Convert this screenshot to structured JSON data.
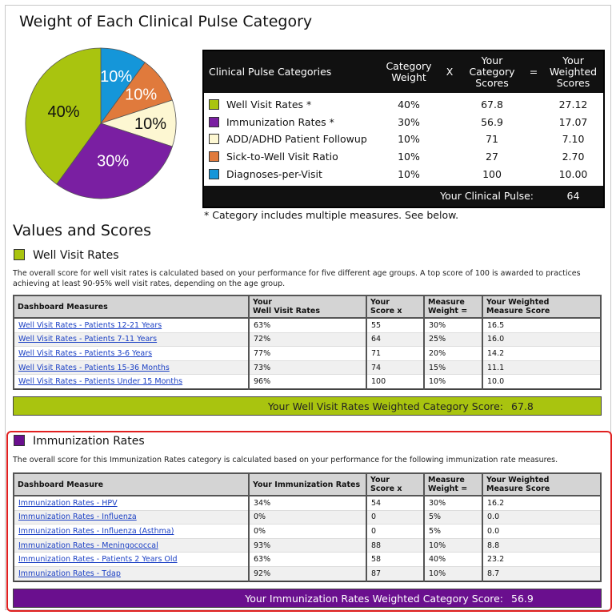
{
  "title": "Weight of Each Clinical Pulse Category",
  "pie": [
    {
      "label": "40%",
      "value": 40,
      "color": "#a9c40f"
    },
    {
      "label": "30%",
      "value": 30,
      "color": "#7a1fa2"
    },
    {
      "label": "10%",
      "value": 10,
      "color": "#fdf7d2"
    },
    {
      "label": "10%",
      "value": 10,
      "color": "#e07a3c"
    },
    {
      "label": "10%",
      "value": 10,
      "color": "#1596d9"
    }
  ],
  "summary": {
    "headers": {
      "categories": "Clinical Pulse Categories",
      "weight": "Category Weight",
      "x": "X",
      "scores": "Your Category Scores",
      "eq": "=",
      "weighted": "Your Weighted Scores"
    },
    "rows": [
      {
        "name": "Well Visit Rates *",
        "weight": "40%",
        "score": "67.8",
        "weighted": "27.12",
        "color": "#a9c40f"
      },
      {
        "name": "Immunization Rates *",
        "weight": "30%",
        "score": "56.9",
        "weighted": "17.07",
        "color": "#7a1fa2"
      },
      {
        "name": "ADD/ADHD Patient Followup",
        "weight": "10%",
        "score": "71",
        "weighted": "7.10",
        "color": "#fdf7d2"
      },
      {
        "name": "Sick-to-Well Visit Ratio",
        "weight": "10%",
        "score": "27",
        "weighted": "2.70",
        "color": "#e07a3c"
      },
      {
        "name": "Diagnoses-per-Visit",
        "weight": "10%",
        "score": "100",
        "weighted": "10.00",
        "color": "#1596d9"
      }
    ],
    "total_label": "Your Clinical Pulse:",
    "total_value": "64"
  },
  "footnote": "* Category includes multiple measures. See below.",
  "values_title": "Values and Scores",
  "well": {
    "title": "Well Visit Rates",
    "color": "#a9c40f",
    "desc": "The overall score for well visit rates is calculated based on your performance for five different age groups. A top score of 100 is awarded to practices achieving at least 90-95% well visit rates, depending on the age group.",
    "headers": [
      "Dashboard Measures",
      "Your\nWell Visit Rates",
      "Your\nScore x",
      "Measure\nWeight =",
      "Your Weighted\nMeasure Score"
    ],
    "rows": [
      [
        "Well Visit Rates - Patients 12-21 Years",
        "63%",
        "55",
        "30%",
        "16.5"
      ],
      [
        "Well Visit Rates - Patients 7-11 Years",
        "72%",
        "64",
        "25%",
        "16.0"
      ],
      [
        "Well Visit Rates - Patients 3-6 Years",
        "77%",
        "71",
        "20%",
        "14.2"
      ],
      [
        "Well Visit Rates - Patients 15-36 Months",
        "73%",
        "74",
        "15%",
        "11.1"
      ],
      [
        "Well Visit Rates - Patients Under 15 Months",
        "96%",
        "100",
        "10%",
        "10.0"
      ]
    ],
    "score_label": "Your Well Visit Rates Weighted Category Score:",
    "score_value": "67.8"
  },
  "imm": {
    "title": "Immunization Rates",
    "color": "#6a0f8e",
    "desc": "The overall score for this Immunization Rates category is calculated based on your performance for the following immunization rate measures.",
    "headers": [
      "Dashboard Measure",
      "Your Immunization Rates",
      "Your\nScore x",
      "Measure\nWeight =",
      "Your Weighted\nMeasure Score"
    ],
    "rows": [
      [
        "Immunization Rates - HPV",
        "34%",
        "54",
        "30%",
        "16.2"
      ],
      [
        "Immunization Rates - Influenza",
        "0%",
        "0",
        "5%",
        "0.0"
      ],
      [
        "Immunization Rates - Influenza (Asthma)",
        "0%",
        "0",
        "5%",
        "0.0"
      ],
      [
        "Immunization Rates - Meningococcal",
        "93%",
        "88",
        "10%",
        "8.8"
      ],
      [
        "Immunization Rates - Patients 2 Years Old",
        "63%",
        "58",
        "40%",
        "23.2"
      ],
      [
        "Immunization Rates - Tdap",
        "92%",
        "87",
        "10%",
        "8.7"
      ]
    ],
    "score_label": "Your Immunization Rates Weighted Category Score:",
    "score_value": "56.9"
  }
}
